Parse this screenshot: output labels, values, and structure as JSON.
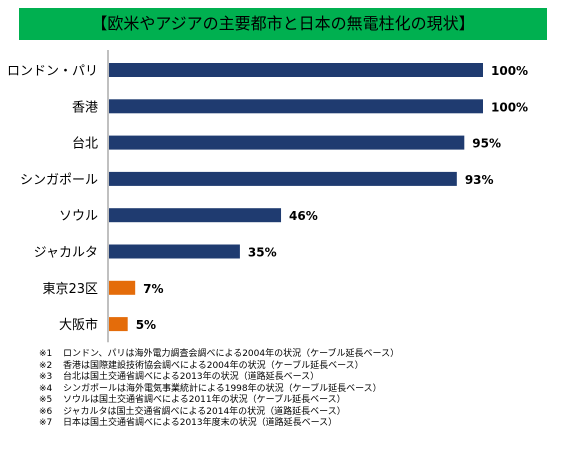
{
  "title": "【欧米やアジアの主要都市と日本の無電柱化の現状】",
  "colors": {
    "title_bg": "#00B050",
    "bar_foreign": "#1F3B70",
    "bar_japan": "#E46C0A"
  },
  "chart_data": {
    "type": "bar",
    "orientation": "horizontal",
    "title": "【欧米やアジアの主要都市と日本の無電柱化の現状】",
    "categories": [
      "ロンドン・パリ",
      "香港",
      "台北",
      "シンガポール",
      "ソウル",
      "ジャカルタ",
      "東京23区",
      "大阪市"
    ],
    "values": [
      100,
      100,
      95,
      93,
      46,
      35,
      7,
      5
    ],
    "data_labels": [
      "100%",
      "100%",
      "95%",
      "93%",
      "46%",
      "35%",
      "7%",
      "5%"
    ],
    "bar_colors": [
      "#1F3B70",
      "#1F3B70",
      "#1F3B70",
      "#1F3B70",
      "#1F3B70",
      "#1F3B70",
      "#E46C0A",
      "#E46C0A"
    ],
    "unit": "%",
    "xlim": [
      0,
      100
    ],
    "grid": false,
    "legend": "none"
  },
  "footnotes": [
    {
      "id": "※1",
      "text": "ロンドン、パリは海外電力調査会調べによる2004年の状況（ケーブル延長ベース）"
    },
    {
      "id": "※2",
      "text": "香港は国際建設技術協会調べによる2004年の状況（ケーブル延長ベース）"
    },
    {
      "id": "※3",
      "text": "台北は国土交通省調べによる2013年の状況（道路延長ベース）"
    },
    {
      "id": "※4",
      "text": "シンガポールは海外電気事業統計による1998年の状況（ケーブル延長ベース）"
    },
    {
      "id": "※5",
      "text": "ソウルは国土交通省調べによる2011年の状況（ケーブル延長ベース）"
    },
    {
      "id": "※6",
      "text": "ジャカルタは国土交通省調べによる2014年の状況（道路延長ベース）"
    },
    {
      "id": "※7",
      "text": "日本は国土交通省調べによる2013年度末の状況（道路延長ベース）"
    }
  ]
}
